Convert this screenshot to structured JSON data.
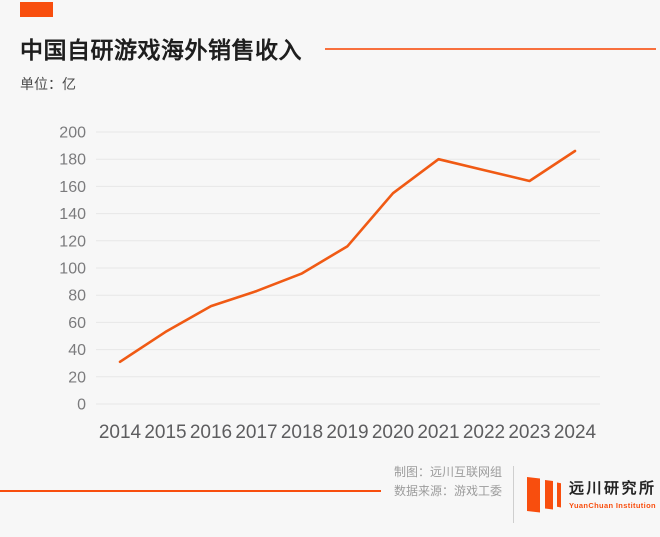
{
  "page": {
    "background": "#f7f7f7",
    "accent": "#f84e0e"
  },
  "header": {
    "title": "中国自研游戏海外销售收入",
    "unit_label": "单位：亿"
  },
  "chart_data": {
    "type": "line",
    "title": "中国自研游戏海外销售收入",
    "unit": "亿",
    "categories": [
      "2014",
      "2015",
      "2016",
      "2017",
      "2018",
      "2019",
      "2020",
      "2021",
      "2022",
      "2023",
      "2024"
    ],
    "values": [
      31,
      53,
      72,
      83,
      96,
      116,
      155,
      180,
      172,
      164,
      186
    ],
    "ylim": [
      0,
      200
    ],
    "ytick_step": 20,
    "grid": true,
    "legend": "none",
    "line_color": "#f05a14",
    "gridline_color": "#e7e7e7",
    "ytick_color": "#7b7b7d",
    "xtick_color": "#5d5d5f"
  },
  "footer": {
    "credit_line1": "制图：远川互联网组",
    "credit_line2": "数据来源：游戏工委",
    "logo_name": "远川研究所",
    "logo_subname": "YuanChuan Institution"
  }
}
